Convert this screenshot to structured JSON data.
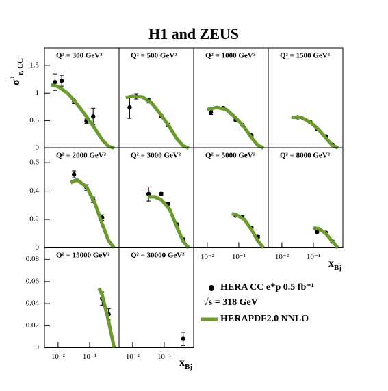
{
  "title": "H1 and ZEUS",
  "y_label": {
    "main": "σ",
    "sup": "+",
    "sub": "r, CC"
  },
  "x_label": {
    "main": "x",
    "sub": "Bj"
  },
  "annotations": [
    "√s = 318 GeV"
  ],
  "chart_data": [
    {
      "type": "scatter",
      "label": "Q² = 300 GeV²",
      "log_x": true,
      "xlim": [
        0.0037,
        0.86
      ],
      "ylim": [
        0,
        1.825
      ],
      "yticks": [
        0,
        0.5,
        1,
        1.5
      ],
      "series": [
        {
          "name": "HERA CC e⁺p 0.5 fb⁻¹",
          "color": "#000000",
          "x": [
            0.008,
            0.013,
            0.032,
            0.08,
            0.13
          ],
          "values": [
            1.2,
            1.225,
            0.86,
            0.49,
            0.575
          ],
          "errors": [
            0.15,
            0.1,
            0.05,
            0.04,
            0.15
          ]
        },
        {
          "name": "HERAPDF2.0 NNLO",
          "type": "line",
          "color": "#6b9b2e",
          "x": [
            0.006,
            0.01,
            0.02,
            0.04,
            0.08,
            0.15,
            0.25,
            0.4,
            0.6
          ],
          "values": [
            1.15,
            1.12,
            1.0,
            0.8,
            0.57,
            0.35,
            0.15,
            0.03,
            0
          ]
        }
      ]
    },
    {
      "type": "scatter",
      "label": "Q² = 500 GeV²",
      "log_x": true,
      "xlim": [
        0.0037,
        0.86
      ],
      "ylim": [
        0,
        1.825
      ],
      "series": [
        {
          "color": "#000000",
          "x": [
            0.008,
            0.013,
            0.032,
            0.08,
            0.13
          ],
          "values": [
            0.74,
            0.94,
            0.86,
            0.58,
            0.42
          ],
          "errors": [
            0.2,
            0.05,
            0.04,
            0.03,
            0.03
          ]
        },
        {
          "type": "line",
          "color": "#6b9b2e",
          "x": [
            0.006,
            0.01,
            0.02,
            0.04,
            0.08,
            0.15,
            0.25,
            0.4,
            0.6
          ],
          "values": [
            0.92,
            0.94,
            0.93,
            0.82,
            0.6,
            0.38,
            0.17,
            0.04,
            0
          ]
        }
      ]
    },
    {
      "type": "scatter",
      "label": "Q² = 1000 GeV²",
      "log_x": true,
      "xlim": [
        0.0037,
        0.86
      ],
      "ylim": [
        0,
        1.825
      ],
      "series": [
        {
          "color": "#000000",
          "x": [
            0.013,
            0.032,
            0.08,
            0.13,
            0.25
          ],
          "values": [
            0.65,
            0.73,
            0.51,
            0.42,
            0.23
          ],
          "errors": [
            0.04,
            0.02,
            0.02,
            0.02,
            0.02
          ]
        },
        {
          "type": "line",
          "color": "#6b9b2e",
          "x": [
            0.01,
            0.02,
            0.04,
            0.08,
            0.15,
            0.25,
            0.4,
            0.6
          ],
          "values": [
            0.7,
            0.74,
            0.7,
            0.55,
            0.38,
            0.19,
            0.05,
            0
          ]
        }
      ]
    },
    {
      "type": "scatter",
      "label": "Q² = 1500 GeV²",
      "log_x": true,
      "xlim": [
        0.0037,
        0.86
      ],
      "ylim": [
        0,
        1.825
      ],
      "series": [
        {
          "color": "#000000",
          "x": [
            0.032,
            0.08,
            0.13,
            0.25,
            0.4
          ],
          "values": [
            0.56,
            0.47,
            0.35,
            0.21,
            0.06
          ],
          "errors": [
            0.02,
            0.02,
            0.02,
            0.02,
            0.02
          ]
        },
        {
          "type": "line",
          "color": "#6b9b2e",
          "x": [
            0.02,
            0.04,
            0.08,
            0.15,
            0.25,
            0.4,
            0.6
          ],
          "values": [
            0.56,
            0.56,
            0.47,
            0.33,
            0.18,
            0.05,
            0
          ]
        }
      ]
    },
    {
      "type": "scatter",
      "label": "Q² = 2000 GeV²",
      "log_x": true,
      "xlim": [
        0.0037,
        0.86
      ],
      "ylim": [
        0,
        0.707
      ],
      "yticks": [
        0,
        0.2,
        0.4,
        0.6
      ],
      "series": [
        {
          "color": "#000000",
          "x": [
            0.032,
            0.08,
            0.13,
            0.25
          ],
          "values": [
            0.518,
            0.426,
            0.339,
            0.213
          ],
          "errors": [
            0.025,
            0.02,
            0.02,
            0.02
          ]
        },
        {
          "type": "line",
          "color": "#6b9b2e",
          "x": [
            0.025,
            0.04,
            0.08,
            0.15,
            0.25,
            0.4,
            0.6
          ],
          "values": [
            0.46,
            0.48,
            0.43,
            0.31,
            0.17,
            0.05,
            0
          ]
        }
      ]
    },
    {
      "type": "scatter",
      "label": "Q² = 3000 GeV²",
      "log_x": true,
      "xlim": [
        0.0037,
        0.86
      ],
      "ylim": [
        0,
        0.707
      ],
      "series": [
        {
          "color": "#000000",
          "x": [
            0.032,
            0.08,
            0.13,
            0.25,
            0.4
          ],
          "values": [
            0.38,
            0.38,
            0.31,
            0.165,
            0.06
          ],
          "errors": [
            0.05,
            0.01,
            0.01,
            0.01,
            0.01
          ]
        },
        {
          "type": "line",
          "color": "#6b9b2e",
          "x": [
            0.03,
            0.05,
            0.08,
            0.15,
            0.25,
            0.4,
            0.6
          ],
          "values": [
            0.36,
            0.36,
            0.34,
            0.27,
            0.15,
            0.045,
            0
          ]
        }
      ]
    },
    {
      "type": "scatter",
      "label": "Q² = 5000 GeV²",
      "log_x": true,
      "xlim": [
        0.0037,
        0.86
      ],
      "ylim": [
        0,
        0.707
      ],
      "xticks": [
        {
          "value": 0.01,
          "label": "10⁻²"
        },
        {
          "value": 0.1,
          "label": "10⁻¹"
        }
      ],
      "series": [
        {
          "color": "#000000",
          "x": [
            0.08,
            0.13,
            0.25,
            0.4
          ],
          "values": [
            0.228,
            0.218,
            0.14,
            0.077
          ],
          "errors": [
            0.01,
            0.01,
            0.01,
            0.01
          ]
        },
        {
          "type": "line",
          "color": "#6b9b2e",
          "x": [
            0.06,
            0.08,
            0.15,
            0.25,
            0.4,
            0.6
          ],
          "values": [
            0.24,
            0.235,
            0.2,
            0.13,
            0.05,
            0
          ]
        }
      ]
    },
    {
      "type": "scatter",
      "label": "Q² = 8000 GeV²",
      "log_x": true,
      "xlim": [
        0.0037,
        0.86
      ],
      "ylim": [
        0,
        0.707
      ],
      "xticks": [
        {
          "value": 0.01,
          "label": "10⁻²"
        },
        {
          "value": 0.1,
          "label": "10⁻¹"
        }
      ],
      "series": [
        {
          "color": "#000000",
          "x": [
            0.13,
            0.25,
            0.4
          ],
          "values": [
            0.111,
            0.106,
            0.044
          ],
          "errors": [
            0.008,
            0.008,
            0.008
          ]
        },
        {
          "type": "line",
          "color": "#6b9b2e",
          "x": [
            0.1,
            0.15,
            0.25,
            0.4,
            0.6
          ],
          "values": [
            0.14,
            0.135,
            0.1,
            0.045,
            0
          ]
        }
      ]
    },
    {
      "type": "scatter",
      "label": "Q² = 15000 GeV²",
      "log_x": true,
      "xlim": [
        0.0037,
        0.86
      ],
      "ylim": [
        0,
        0.091
      ],
      "yticks": [
        0,
        0.02,
        0.04,
        0.06,
        0.08
      ],
      "xticks": [
        {
          "value": 0.01,
          "label": "10⁻²"
        },
        {
          "value": 0.1,
          "label": "10⁻¹"
        }
      ],
      "series": [
        {
          "color": "#000000",
          "x": [
            0.25,
            0.4
          ],
          "values": [
            0.0446,
            0.0303
          ],
          "errors": [
            0.006,
            0.005
          ]
        },
        {
          "type": "line",
          "color": "#6b9b2e",
          "x": [
            0.2,
            0.25,
            0.4,
            0.6
          ],
          "values": [
            0.054,
            0.048,
            0.024,
            0
          ]
        }
      ]
    },
    {
      "type": "scatter",
      "label": "Q² = 30000 GeV²",
      "log_x": true,
      "xlim": [
        0.0037,
        0.86
      ],
      "ylim": [
        0,
        0.091
      ],
      "xticks": [
        {
          "value": 0.01,
          "label": "10⁻²"
        },
        {
          "value": 0.1,
          "label": "10⁻¹"
        }
      ],
      "series": [
        {
          "color": "#000000",
          "x": [
            0.4
          ],
          "values": [
            0.008
          ],
          "errors": [
            0.006
          ]
        }
      ]
    }
  ]
}
